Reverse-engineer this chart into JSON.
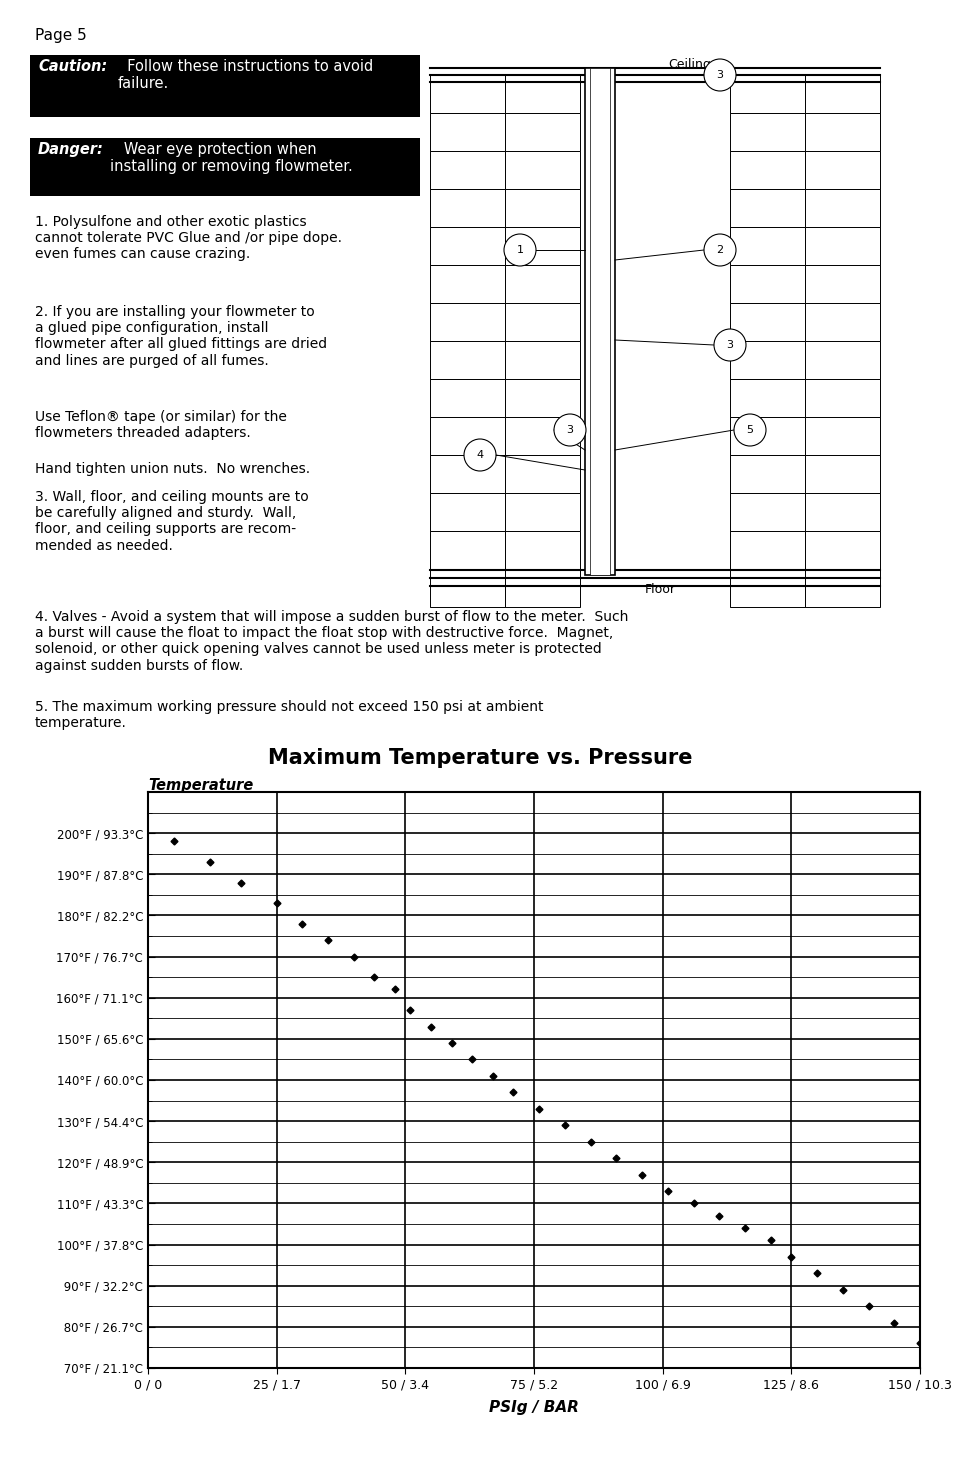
{
  "page_label": "Page 5",
  "chart_title": "Maximum Temperature vs. Pressure",
  "ylabel": "Temperature",
  "xlabel": "PSIg / BAR",
  "ytick_labels": [
    "200°F / 93.3°C",
    "190°F / 87.8°C",
    "180°F / 82.2°C",
    "170°F / 76.7°C",
    "160°F / 71.1°C",
    "150°F / 65.6°C",
    "140°F / 60.0°C",
    "130°F / 54.4°C",
    "120°F / 48.9°C",
    "110°F / 43.3°C",
    "100°F / 37.8°C",
    " 90°F / 32.2°C",
    " 80°F / 26.7°C",
    " 70°F / 21.1°C"
  ],
  "ytick_values": [
    200,
    190,
    180,
    170,
    160,
    150,
    140,
    130,
    120,
    110,
    100,
    90,
    80,
    70
  ],
  "xtick_labels": [
    "0 / 0",
    "25 / 1.7",
    "50 / 3.4",
    "75 / 5.2",
    "100 / 6.9",
    "125 / 8.6",
    "150 / 10.3"
  ],
  "xtick_values": [
    0,
    25,
    50,
    75,
    100,
    125,
    150
  ],
  "data_points": [
    [
      5,
      198
    ],
    [
      12,
      193
    ],
    [
      18,
      188
    ],
    [
      25,
      183
    ],
    [
      30,
      178
    ],
    [
      35,
      174
    ],
    [
      40,
      170
    ],
    [
      44,
      165
    ],
    [
      48,
      162
    ],
    [
      51,
      157
    ],
    [
      55,
      153
    ],
    [
      59,
      149
    ],
    [
      63,
      145
    ],
    [
      67,
      141
    ],
    [
      71,
      137
    ],
    [
      76,
      133
    ],
    [
      81,
      129
    ],
    [
      86,
      125
    ],
    [
      91,
      121
    ],
    [
      96,
      117
    ],
    [
      101,
      113
    ],
    [
      106,
      110
    ],
    [
      111,
      107
    ],
    [
      116,
      104
    ],
    [
      121,
      101
    ],
    [
      125,
      97
    ],
    [
      130,
      93
    ],
    [
      135,
      89
    ],
    [
      140,
      85
    ],
    [
      145,
      81
    ],
    [
      150,
      76
    ]
  ],
  "bg_color": "#ffffff",
  "marker_color": "#000000",
  "grid_color": "#000000"
}
